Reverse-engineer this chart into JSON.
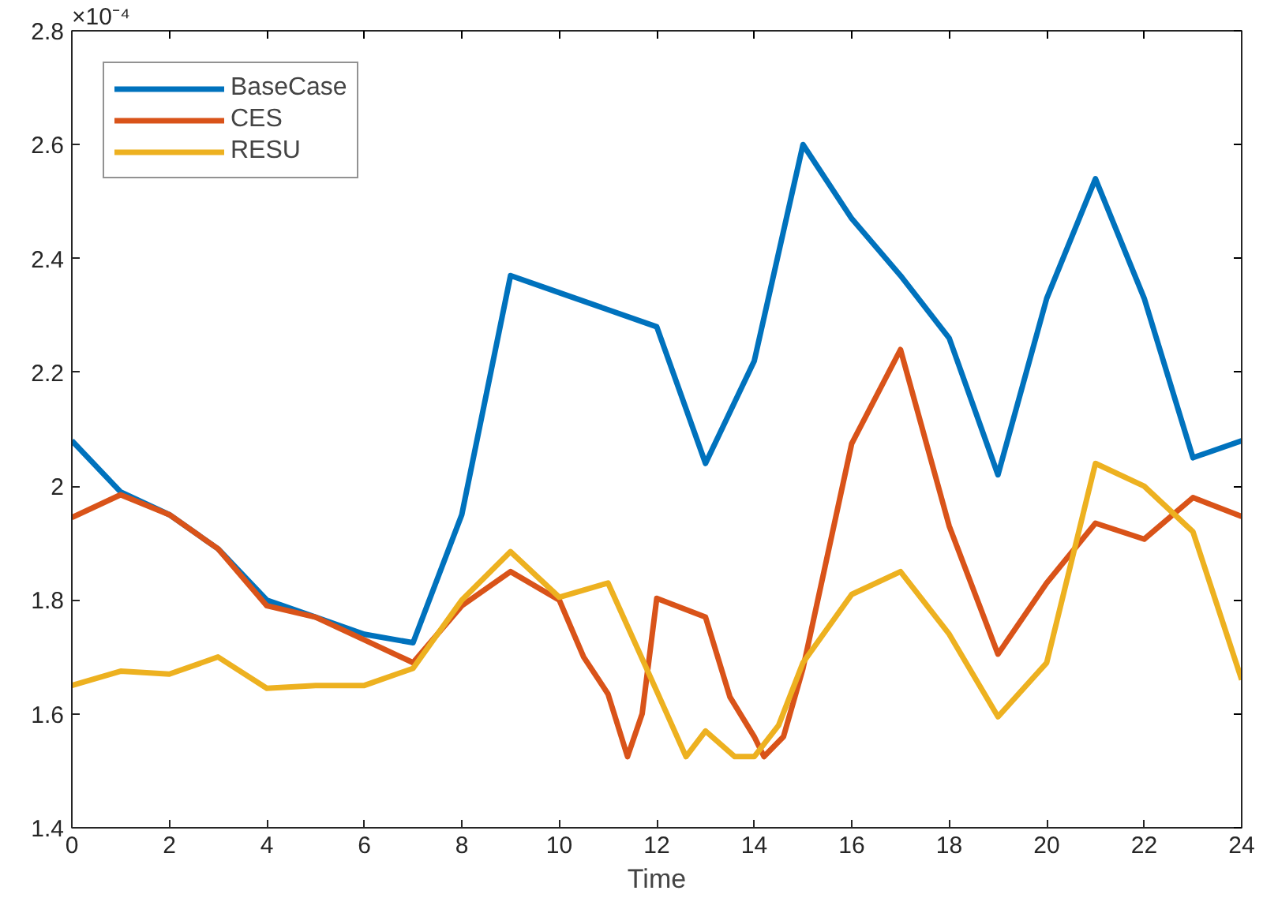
{
  "chart_data": {
    "type": "line",
    "xlabel": "Time",
    "annotations": [
      "×10⁻⁴"
    ],
    "xlim": [
      0,
      24
    ],
    "xticks": [
      0,
      2,
      4,
      6,
      8,
      10,
      12,
      14,
      16,
      18,
      20,
      22,
      24
    ],
    "ylim": [
      1.4,
      2.8
    ],
    "yticks": [
      1.4,
      1.6,
      1.8,
      2,
      2.2,
      2.4,
      2.6,
      2.8
    ],
    "grid": false,
    "legend": "top left",
    "line_style": "solid",
    "marker": "none",
    "series": [
      {
        "name": "BaseCase",
        "color": "#0072bd",
        "x": [
          0,
          1,
          2,
          3,
          4,
          5,
          6,
          7,
          8,
          9,
          10,
          11,
          12,
          13,
          14,
          15,
          16,
          17,
          18,
          19,
          20,
          21,
          22,
          23,
          24
        ],
        "values": [
          2.08,
          1.99,
          1.95,
          1.89,
          1.8,
          1.77,
          1.74,
          1.725,
          1.95,
          2.37,
          2.34,
          2.31,
          2.28,
          2.04,
          2.22,
          2.6,
          2.47,
          2.37,
          2.26,
          2.02,
          2.33,
          2.54,
          2.33,
          2.05,
          2.08
        ]
      },
      {
        "name": "CES",
        "color": "#d95319",
        "x": [
          0,
          1,
          2,
          3,
          4,
          5,
          6,
          7,
          8,
          9,
          10,
          10.5,
          11,
          11.4,
          11.7,
          12,
          13,
          13.5,
          14,
          14.2,
          14.6,
          15,
          16,
          17,
          18,
          19,
          20,
          21,
          22,
          23,
          24
        ],
        "values": [
          1.945,
          1.985,
          1.95,
          1.89,
          1.79,
          1.77,
          1.73,
          1.69,
          1.79,
          1.85,
          1.8,
          1.7,
          1.635,
          1.525,
          1.6,
          1.803,
          1.77,
          1.63,
          1.56,
          1.525,
          1.56,
          1.68,
          2.075,
          2.24,
          1.93,
          1.705,
          1.83,
          1.935,
          1.907,
          1.98,
          1.947
        ]
      },
      {
        "name": "RESU",
        "color": "#edb120",
        "x": [
          0,
          1,
          2,
          3,
          4,
          5,
          6,
          7,
          8,
          9,
          10,
          11,
          12,
          12.6,
          13,
          13.6,
          14,
          14.5,
          15,
          16,
          17,
          18,
          19,
          20,
          21,
          22,
          23,
          24
        ],
        "values": [
          1.65,
          1.675,
          1.67,
          1.7,
          1.645,
          1.65,
          1.65,
          1.68,
          1.8,
          1.885,
          1.805,
          1.83,
          1.64,
          1.525,
          1.57,
          1.525,
          1.525,
          1.58,
          1.69,
          1.81,
          1.85,
          1.74,
          1.595,
          1.69,
          2.04,
          2.0,
          1.92,
          1.66
        ]
      }
    ]
  }
}
